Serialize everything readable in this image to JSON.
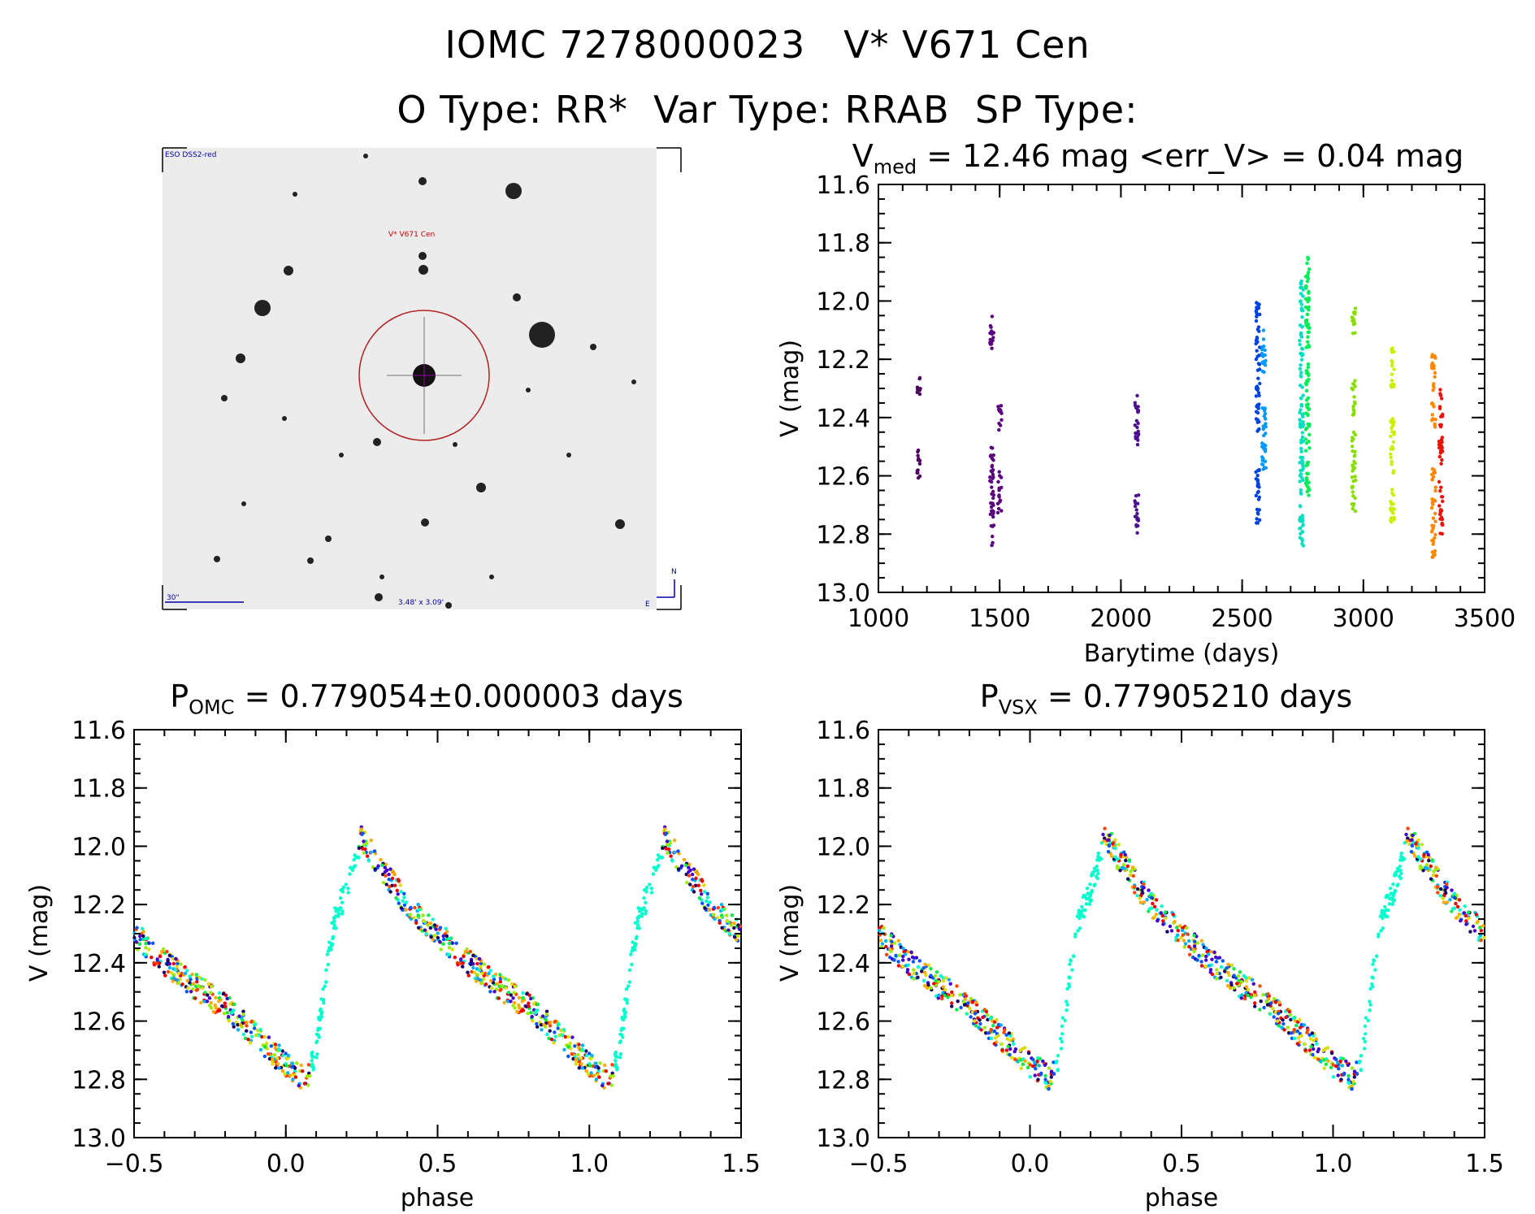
{
  "header": {
    "line1": "IOMC 7278000023   V* V671 Cen",
    "line2": "O Type: RR*  Var Type: RRAB  SP Type:"
  },
  "finder": {
    "survey_label": "ESO DSS2-red",
    "target_label": "V* V671 Cen",
    "scale_label": "30\"",
    "fov_label": "3.48' x 3.09'",
    "north_label": "N",
    "east_label": "E"
  },
  "light_curve_title": {
    "main": "V",
    "sub": "med",
    "rest": " = 12.46 mag <err_V> = 0.04 mag"
  },
  "phase_omc_title": {
    "main": "P",
    "sub": "OMC",
    "rest": " = 0.779054±0.000003 days"
  },
  "phase_vsx_title": {
    "main": "P",
    "sub": "VSX",
    "rest": " = 0.77905210 days"
  },
  "colors": {
    "axis": "#000000",
    "circle": "#b22222",
    "finder_label": "#0000aa",
    "target_label": "#cc0000"
  },
  "chart_data": [
    {
      "type": "scatter",
      "name": "light_curve",
      "xlabel": "Barytime (days)",
      "ylabel": "V (mag)",
      "xlim": [
        1000,
        3500
      ],
      "ylim": [
        13.0,
        11.6
      ],
      "y_inverted": true,
      "xticks": [
        "1000",
        "1500",
        "2000",
        "2500",
        "3000",
        "3500"
      ],
      "yticks": [
        "11.6",
        "11.8",
        "12.0",
        "12.2",
        "12.4",
        "12.6",
        "12.8",
        "13.0"
      ],
      "groups": [
        {
          "t": 1165,
          "color": "#4b0060",
          "segments": [
            [
              12.25,
              12.33
            ],
            [
              12.5,
              12.61
            ]
          ]
        },
        {
          "t": 1468,
          "color": "#5a0080",
          "segments": [
            [
              12.05,
              12.19
            ],
            [
              12.5,
              12.84
            ]
          ]
        },
        {
          "t": 1500,
          "color": "#5a0080",
          "segments": [
            [
              12.35,
              12.45
            ],
            [
              12.58,
              12.73
            ]
          ]
        },
        {
          "t": 2065,
          "color": "#4b1090",
          "segments": [
            [
              12.32,
              12.51
            ],
            [
              12.66,
              12.8
            ]
          ]
        },
        {
          "t": 2565,
          "color": "#0044dd",
          "segments": [
            [
              12.0,
              12.45
            ],
            [
              12.55,
              12.77
            ]
          ]
        },
        {
          "t": 2590,
          "color": "#0099ff",
          "segments": [
            [
              12.1,
              12.25
            ],
            [
              12.35,
              12.6
            ]
          ]
        },
        {
          "t": 2745,
          "color": "#00e0c0",
          "segments": [
            [
              11.93,
              12.85
            ]
          ]
        },
        {
          "t": 2770,
          "color": "#00ee55",
          "segments": [
            [
              11.94,
              12.67
            ],
            [
              11.85,
              11.95
            ]
          ]
        },
        {
          "t": 2960,
          "color": "#88dd00",
          "segments": [
            [
              12.0,
              12.12
            ],
            [
              12.27,
              12.4
            ],
            [
              12.45,
              12.73
            ]
          ]
        },
        {
          "t": 3120,
          "color": "#ccee00",
          "segments": [
            [
              12.15,
              12.3
            ],
            [
              12.4,
              12.6
            ],
            [
              12.62,
              12.77
            ]
          ]
        },
        {
          "t": 3290,
          "color": "#ff8800",
          "segments": [
            [
              12.18,
              12.45
            ],
            [
              12.55,
              12.88
            ]
          ]
        },
        {
          "t": 3320,
          "color": "#ee1100",
          "segments": [
            [
              12.3,
              12.56
            ],
            [
              12.62,
              12.8
            ]
          ]
        }
      ]
    },
    {
      "type": "scatter",
      "name": "phase_omc",
      "xlabel": "phase",
      "ylabel": "V (mag)",
      "xlim": [
        -0.5,
        1.5
      ],
      "ylim": [
        13.0,
        11.6
      ],
      "y_inverted": true,
      "xticks": [
        "−0.5",
        "0.0",
        "0.5",
        "1.0",
        "1.5"
      ],
      "yticks": [
        "11.6",
        "11.8",
        "12.0",
        "12.2",
        "12.4",
        "12.6",
        "12.8",
        "13.0"
      ],
      "period_days": 0.779054,
      "template": [
        [
          0.0,
          12.75
        ],
        [
          0.07,
          12.8
        ],
        [
          0.1,
          12.7
        ],
        [
          0.13,
          12.45
        ],
        [
          0.16,
          12.25
        ],
        [
          0.2,
          12.15
        ],
        [
          0.25,
          11.97
        ],
        [
          0.3,
          12.05
        ],
        [
          0.4,
          12.2
        ],
        [
          0.5,
          12.3
        ],
        [
          0.6,
          12.4
        ],
        [
          0.7,
          12.48
        ],
        [
          0.8,
          12.55
        ],
        [
          0.9,
          12.65
        ],
        [
          1.0,
          12.75
        ]
      ],
      "series_colors": [
        "#1a0060",
        "#4400cc",
        "#0055ff",
        "#00b0ff",
        "#00ffcc",
        "#00ee44",
        "#99ee00",
        "#dddd00",
        "#ffaa00",
        "#ff4400",
        "#ee0000"
      ]
    },
    {
      "type": "scatter",
      "name": "phase_vsx",
      "xlabel": "phase",
      "ylabel": "V (mag)",
      "xlim": [
        -0.5,
        1.5
      ],
      "ylim": [
        13.0,
        11.6
      ],
      "y_inverted": true,
      "xticks": [
        "−0.5",
        "0.0",
        "0.5",
        "1.0",
        "1.5"
      ],
      "yticks": [
        "11.6",
        "11.8",
        "12.0",
        "12.2",
        "12.4",
        "12.6",
        "12.8",
        "13.0"
      ],
      "period_days": 0.7790521,
      "template": [
        [
          0.0,
          12.75
        ],
        [
          0.07,
          12.8
        ],
        [
          0.1,
          12.7
        ],
        [
          0.13,
          12.45
        ],
        [
          0.16,
          12.25
        ],
        [
          0.2,
          12.15
        ],
        [
          0.25,
          11.97
        ],
        [
          0.3,
          12.05
        ],
        [
          0.4,
          12.2
        ],
        [
          0.5,
          12.3
        ],
        [
          0.6,
          12.4
        ],
        [
          0.7,
          12.48
        ],
        [
          0.8,
          12.55
        ],
        [
          0.9,
          12.65
        ],
        [
          1.0,
          12.75
        ]
      ],
      "series_colors": [
        "#1a0060",
        "#4400cc",
        "#0055ff",
        "#00b0ff",
        "#00ffcc",
        "#00ee44",
        "#99ee00",
        "#dddd00",
        "#ffaa00",
        "#ff4400",
        "#ee0000"
      ]
    }
  ]
}
